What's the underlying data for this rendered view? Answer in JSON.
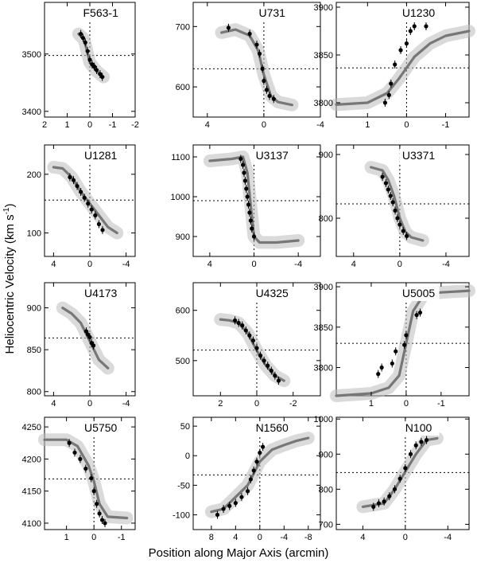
{
  "figure": {
    "ylabel": "Heliocentric Velocity (km s",
    "ylabel_sup": "-1",
    "ylabel_tail": ")",
    "xlabel": "Position along Major Axis (arcmin)"
  },
  "chart_data": [
    {
      "type": "scatter",
      "title": "F563-1",
      "x_ticks": [
        "2",
        "1",
        "0",
        "-1",
        "-2"
      ],
      "xlim": [
        2,
        -2
      ],
      "y_ticks": [
        "3400",
        "3500"
      ],
      "ylim": [
        3390,
        3590
      ],
      "curve_x": [
        0.5,
        0.25,
        0.0,
        -0.3,
        -0.6
      ],
      "curve_y": [
        3535,
        3525,
        3485,
        3470,
        3460
      ],
      "points_x": [
        0.4,
        0.3,
        0.2,
        0.1,
        0.0,
        -0.1,
        -0.2,
        -0.3,
        -0.45,
        -0.55
      ],
      "points_y": [
        3535,
        3528,
        3520,
        3505,
        3490,
        3482,
        3478,
        3472,
        3465,
        3460
      ]
    },
    {
      "type": "scatter",
      "title": "U731",
      "x_ticks": [
        "4",
        "0",
        "-4"
      ],
      "xlim": [
        5,
        -4
      ],
      "y_ticks": [
        "600",
        "700"
      ],
      "ylim": [
        550,
        740
      ],
      "curve_x": [
        3,
        2,
        1,
        0.4,
        0,
        -0.5,
        -1,
        -2
      ],
      "curve_y": [
        690,
        695,
        685,
        660,
        620,
        585,
        575,
        570
      ],
      "points_x": [
        2.5,
        1,
        0.5,
        0.3,
        0.1,
        0,
        -0.2,
        -0.4,
        -0.7
      ],
      "points_y": [
        698,
        688,
        670,
        655,
        630,
        610,
        595,
        585,
        580
      ]
    },
    {
      "type": "scatter",
      "title": "U1230",
      "x_ticks": [
        "1",
        "0",
        "-1"
      ],
      "xlim": [
        1.8,
        -1.6
      ],
      "y_ticks": [
        "3800",
        "3850",
        "3900"
      ],
      "ylim": [
        3785,
        3905
      ],
      "curve_x": [
        1.8,
        1.0,
        0.5,
        0.2,
        -0.2,
        -0.6,
        -1.0,
        -1.6
      ],
      "curve_y": [
        3798,
        3800,
        3810,
        3825,
        3848,
        3862,
        3870,
        3875
      ],
      "points_x": [
        0.55,
        0.45,
        0.4,
        0.3,
        0.15,
        0.0,
        -0.1,
        -0.2,
        -0.5
      ],
      "points_y": [
        3800,
        3808,
        3820,
        3840,
        3855,
        3862,
        3875,
        3880,
        3880
      ]
    },
    {
      "type": "scatter",
      "title": "U1281",
      "x_ticks": [
        "4",
        "0",
        "-4"
      ],
      "xlim": [
        5,
        -5
      ],
      "y_ticks": [
        "100",
        "200"
      ],
      "ylim": [
        60,
        250
      ],
      "curve_x": [
        4,
        3,
        2,
        1,
        0,
        -1,
        -2,
        -3
      ],
      "curve_y": [
        212,
        210,
        195,
        170,
        150,
        130,
        110,
        100
      ],
      "points_x": [
        2.2,
        1.8,
        1.4,
        1.0,
        0.6,
        0.2,
        -0.2,
        -0.6,
        -1.0,
        -1.4
      ],
      "points_y": [
        195,
        190,
        180,
        170,
        160,
        150,
        140,
        130,
        115,
        105
      ]
    },
    {
      "type": "scatter",
      "title": "U3137",
      "x_ticks": [
        "4",
        "0",
        "-4"
      ],
      "xlim": [
        5.5,
        -6
      ],
      "y_ticks": [
        "900",
        "1000",
        "1100"
      ],
      "ylim": [
        850,
        1130
      ],
      "curve_x": [
        4,
        2,
        1,
        0.6,
        0.3,
        0,
        -0.5,
        -2,
        -4
      ],
      "curve_y": [
        1090,
        1095,
        1100,
        1060,
        980,
        900,
        885,
        885,
        890
      ],
      "points_x": [
        1.2,
        1.0,
        0.9,
        0.8,
        0.7,
        0.6,
        0.5,
        0.4,
        0.3,
        0.2,
        0.0
      ],
      "points_y": [
        1095,
        1080,
        1060,
        1040,
        1020,
        1000,
        980,
        960,
        940,
        920,
        900
      ]
    },
    {
      "type": "scatter",
      "title": "U3371",
      "x_ticks": [
        "4",
        "0",
        "-4"
      ],
      "xlim": [
        5.5,
        -6
      ],
      "y_ticks": [
        "800",
        "900"
      ],
      "ylim": [
        740,
        915
      ],
      "curve_x": [
        2.5,
        1.5,
        1.0,
        0.5,
        0,
        -0.5,
        -1,
        -2
      ],
      "curve_y": [
        880,
        875,
        860,
        835,
        800,
        778,
        770,
        765
      ],
      "points_x": [
        1.5,
        1.2,
        1.0,
        0.8,
        0.6,
        0.4,
        0.2,
        0,
        -0.3,
        -0.6
      ],
      "points_y": [
        865,
        855,
        845,
        835,
        825,
        812,
        800,
        790,
        780,
        772
      ]
    },
    {
      "type": "scatter",
      "title": "U4173",
      "x_ticks": [
        "4",
        "0",
        "-4"
      ],
      "xlim": [
        5,
        -5
      ],
      "y_ticks": [
        "800",
        "850",
        "900"
      ],
      "ylim": [
        795,
        930
      ],
      "curve_x": [
        3,
        2,
        1,
        0,
        -1,
        -2
      ],
      "curve_y": [
        900,
        893,
        882,
        860,
        838,
        828
      ],
      "points_x": [
        0.4,
        0.2,
        0.0,
        -0.2,
        -0.4
      ],
      "points_y": [
        872,
        868,
        865,
        858,
        855
      ]
    },
    {
      "type": "scatter",
      "title": "U4325",
      "x_ticks": [
        "2",
        "0",
        "-2"
      ],
      "xlim": [
        3.5,
        -3.5
      ],
      "y_ticks": [
        "500",
        "600"
      ],
      "ylim": [
        430,
        655
      ],
      "curve_x": [
        2,
        1.5,
        1,
        0.5,
        0,
        -0.5,
        -1,
        -1.5
      ],
      "curve_y": [
        582,
        580,
        575,
        555,
        520,
        490,
        470,
        460
      ],
      "points_x": [
        1.2,
        1.0,
        0.8,
        0.6,
        0.4,
        0.2,
        0,
        -0.2,
        -0.4,
        -0.6,
        -0.8,
        -1.0,
        -1.2
      ],
      "points_y": [
        580,
        575,
        570,
        560,
        550,
        540,
        525,
        510,
        500,
        490,
        480,
        470,
        460
      ]
    },
    {
      "type": "scatter",
      "title": "U5005",
      "x_ticks": [
        "1",
        "0",
        "-1"
      ],
      "xlim": [
        2,
        -1.8
      ],
      "y_ticks": [
        "3800",
        "3850",
        "3900"
      ],
      "ylim": [
        3765,
        3905
      ],
      "curve_x": [
        2,
        1.0,
        0.5,
        0.2,
        0,
        -0.2,
        -0.5,
        -1.0,
        -1.8
      ],
      "curve_y": [
        3765,
        3768,
        3775,
        3790,
        3830,
        3870,
        3890,
        3893,
        3895
      ],
      "points_x": [
        0.8,
        0.7,
        0.4,
        0.3,
        0.05,
        0,
        -0.3,
        -0.4
      ],
      "points_y": [
        3792,
        3800,
        3805,
        3820,
        3828,
        3840,
        3865,
        3868
      ]
    },
    {
      "type": "scatter",
      "title": "U5750",
      "x_ticks": [
        "1",
        "0",
        "-1"
      ],
      "xlim": [
        1.8,
        -1.5
      ],
      "y_ticks": [
        "4100",
        "4150",
        "4200",
        "4250"
      ],
      "ylim": [
        4090,
        4265
      ],
      "curve_x": [
        1.8,
        1.0,
        0.6,
        0.2,
        0,
        -0.2,
        -0.5,
        -1.2
      ],
      "curve_y": [
        4230,
        4230,
        4220,
        4190,
        4165,
        4130,
        4110,
        4108
      ],
      "points_x": [
        0.9,
        0.7,
        0.5,
        0.3,
        0.1,
        0.0,
        -0.1,
        -0.2,
        -0.3,
        -0.4
      ],
      "points_y": [
        4225,
        4210,
        4200,
        4185,
        4170,
        4150,
        4130,
        4115,
        4105,
        4100
      ]
    },
    {
      "type": "scatter",
      "title": "N1560",
      "x_ticks": [
        "8",
        "4",
        "0",
        "-4",
        "-8"
      ],
      "xlim": [
        11,
        -10
      ],
      "y_ticks": [
        "-100",
        "-50",
        "0",
        "50"
      ],
      "ylim": [
        -125,
        65
      ],
      "curve_x": [
        8,
        6,
        4,
        2,
        0,
        -2,
        -4,
        -6,
        -8
      ],
      "curve_y": [
        -95,
        -90,
        -70,
        -50,
        -10,
        10,
        18,
        25,
        30
      ],
      "points_x": [
        7,
        6,
        5,
        4,
        3,
        2,
        1.5,
        1,
        0.5,
        0,
        -0.5
      ],
      "points_y": [
        -100,
        -90,
        -85,
        -80,
        -70,
        -60,
        -40,
        -25,
        -10,
        5,
        15
      ]
    },
    {
      "type": "scatter",
      "title": "N100",
      "x_ticks": [
        "4",
        "0",
        "-4"
      ],
      "xlim": [
        6.5,
        -6
      ],
      "y_ticks": [
        "700",
        "800",
        "900",
        "1000"
      ],
      "ylim": [
        685,
        1005
      ],
      "curve_x": [
        4,
        3,
        2,
        1,
        0,
        -1,
        -2,
        -3
      ],
      "curve_y": [
        750,
        755,
        760,
        800,
        850,
        900,
        940,
        945
      ],
      "points_x": [
        3,
        2.5,
        2,
        1.5,
        1,
        0.5,
        0,
        -0.5,
        -1,
        -1.5,
        -2
      ],
      "points_y": [
        750,
        760,
        765,
        780,
        800,
        830,
        860,
        900,
        925,
        935,
        940
      ]
    }
  ]
}
